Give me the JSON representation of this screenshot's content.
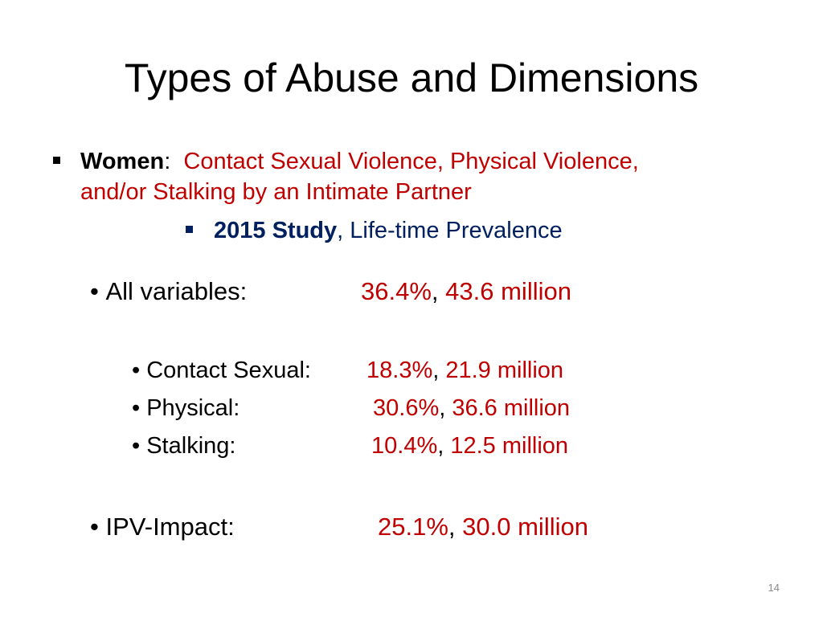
{
  "slide": {
    "title": "Types of Abuse and Dimensions",
    "page_number": "14",
    "level1": {
      "label": "Women",
      "colon": ":",
      "text_line1": "Contact Sexual Violence, Physical Violence,",
      "text_line2": "and/or Stalking by an Intimate Partner"
    },
    "level2": {
      "label": "2015 Study",
      "text": ", Life-time Prevalence"
    },
    "items": [
      {
        "label": "All variables:",
        "percent": "36.4%",
        "sep": ",",
        "count": "43.6 million"
      },
      {
        "label": "Contact Sexual:",
        "percent": "18.3%",
        "sep": ",",
        "count": "21.9 million"
      },
      {
        "label": "Physical:",
        "percent": "30.6%",
        "sep": ",",
        "count": "36.6 million"
      },
      {
        "label": "Stalking:",
        "percent": "10.4%",
        "sep": ",",
        "count": "12.5 million"
      },
      {
        "label": "IPV-Impact:",
        "percent": "25.1%",
        "sep": ",",
        "count": "30.0 million"
      }
    ],
    "colors": {
      "accent_red": "#c00000",
      "navy": "#002060",
      "text": "#000000"
    }
  }
}
